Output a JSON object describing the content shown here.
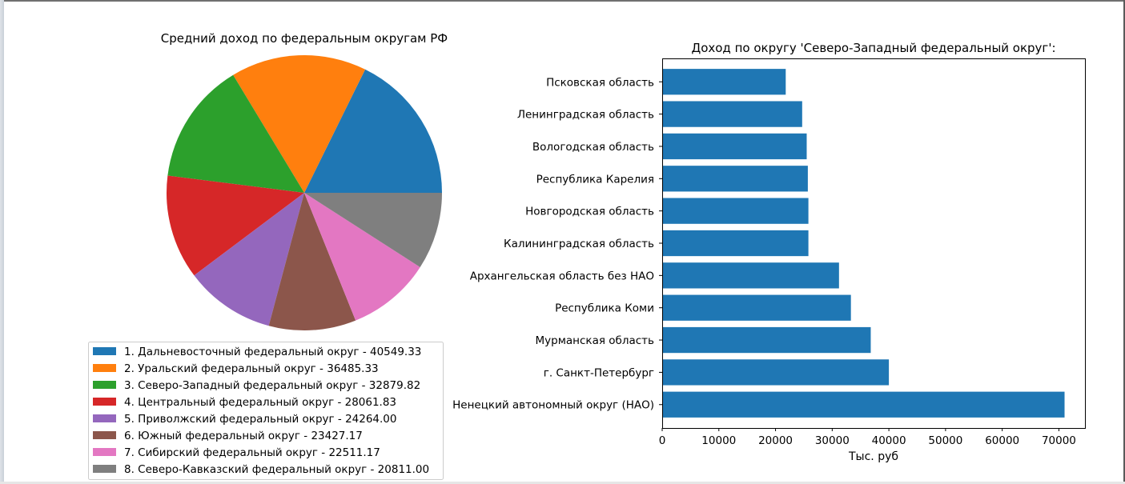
{
  "chart_data": [
    {
      "type": "pie",
      "title": "Средний доход по федеральным округам РФ",
      "categories": [
        "1. Дальневосточный федеральный округ - 40549.33",
        "2. Уральский федеральный округ - 36485.33",
        "3. Северо-Западный  федеральный округ - 32879.82",
        "4. Центральный федеральный округ - 28061.83",
        "5. Приволжский федеральный округ - 24264.00",
        "6. Южный федеральный округ - 23427.17",
        "7. Сибирский федеральный округ - 22511.17",
        "8. Северо-Кавказский федеральный округ - 20811.00"
      ],
      "values": [
        40549.33,
        36485.33,
        32879.82,
        28061.83,
        24264.0,
        23427.17,
        22511.17,
        20811.0
      ],
      "colors": [
        "#1f77b4",
        "#ff7f0e",
        "#2ca02c",
        "#d62728",
        "#9467bd",
        "#8c564b",
        "#e377c2",
        "#7f7f7f"
      ],
      "legend": "bottom"
    },
    {
      "type": "bar",
      "orientation": "horizontal",
      "title": "Доход по округу 'Северо-Западный  федеральный округ':",
      "categories": [
        "Псковская область",
        "Ленинградская область",
        "Вологодская область",
        "Республика Карелия",
        "Новгородская область",
        "Калининградская область",
        "Архангельская область без НАО",
        "Республика Коми",
        "Мурманская область",
        "г. Санкт-Петербург",
        "Ненецкий автономный округ (НАО)"
      ],
      "values": [
        21800,
        24700,
        25500,
        25700,
        25800,
        25800,
        31200,
        33300,
        36800,
        40000,
        71000
      ],
      "xlabel": "Тыс. руб",
      "ylabel": "",
      "xlim": [
        0,
        74600
      ],
      "xticks": [
        0,
        10000,
        20000,
        30000,
        40000,
        50000,
        60000,
        70000
      ],
      "bar_color": "#1f77b4"
    }
  ]
}
